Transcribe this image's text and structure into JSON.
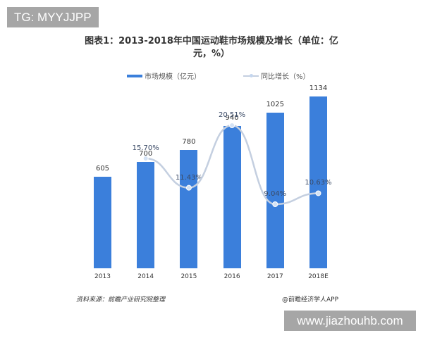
{
  "overlay": {
    "top_tag": "TG: MYYJJPP",
    "bottom_tag": "www.jiazhouhb.com"
  },
  "title_line1": "图表1：2013-2018年中国运动鞋市场规模及增长（单位：亿",
  "title_line2": "元，%）",
  "legend": {
    "series1": "市场规模（亿元）",
    "series2": "同比增长（%）"
  },
  "footer": {
    "source": "资料来源：前瞻产业研究院整理",
    "credit": "@前瞻经济学人APP"
  },
  "colors": {
    "bar": "#3b7fdb",
    "line": "#c4cfe0"
  },
  "chart_data": {
    "type": "bar",
    "title": "图表1：2013-2018年中国运动鞋市场规模及增长（单位：亿元，%）",
    "categories": [
      "2013",
      "2014",
      "2015",
      "2016",
      "2017",
      "2018E"
    ],
    "series": [
      {
        "name": "市场规模（亿元）",
        "type": "bar",
        "values": [
          605,
          700,
          780,
          940,
          1025,
          1134
        ],
        "labels": [
          "605",
          "700",
          "780",
          "940",
          "1025",
          "1134"
        ]
      },
      {
        "name": "同比增长（%）",
        "type": "line",
        "values": [
          null,
          15.7,
          11.43,
          20.51,
          9.04,
          10.63
        ],
        "labels": [
          "",
          "15.70%",
          "11.43%",
          "20.51%",
          "9.04%",
          "10.63%"
        ]
      }
    ],
    "xlabel": "",
    "ylabel": "",
    "legend_position": "top",
    "grid": false
  }
}
